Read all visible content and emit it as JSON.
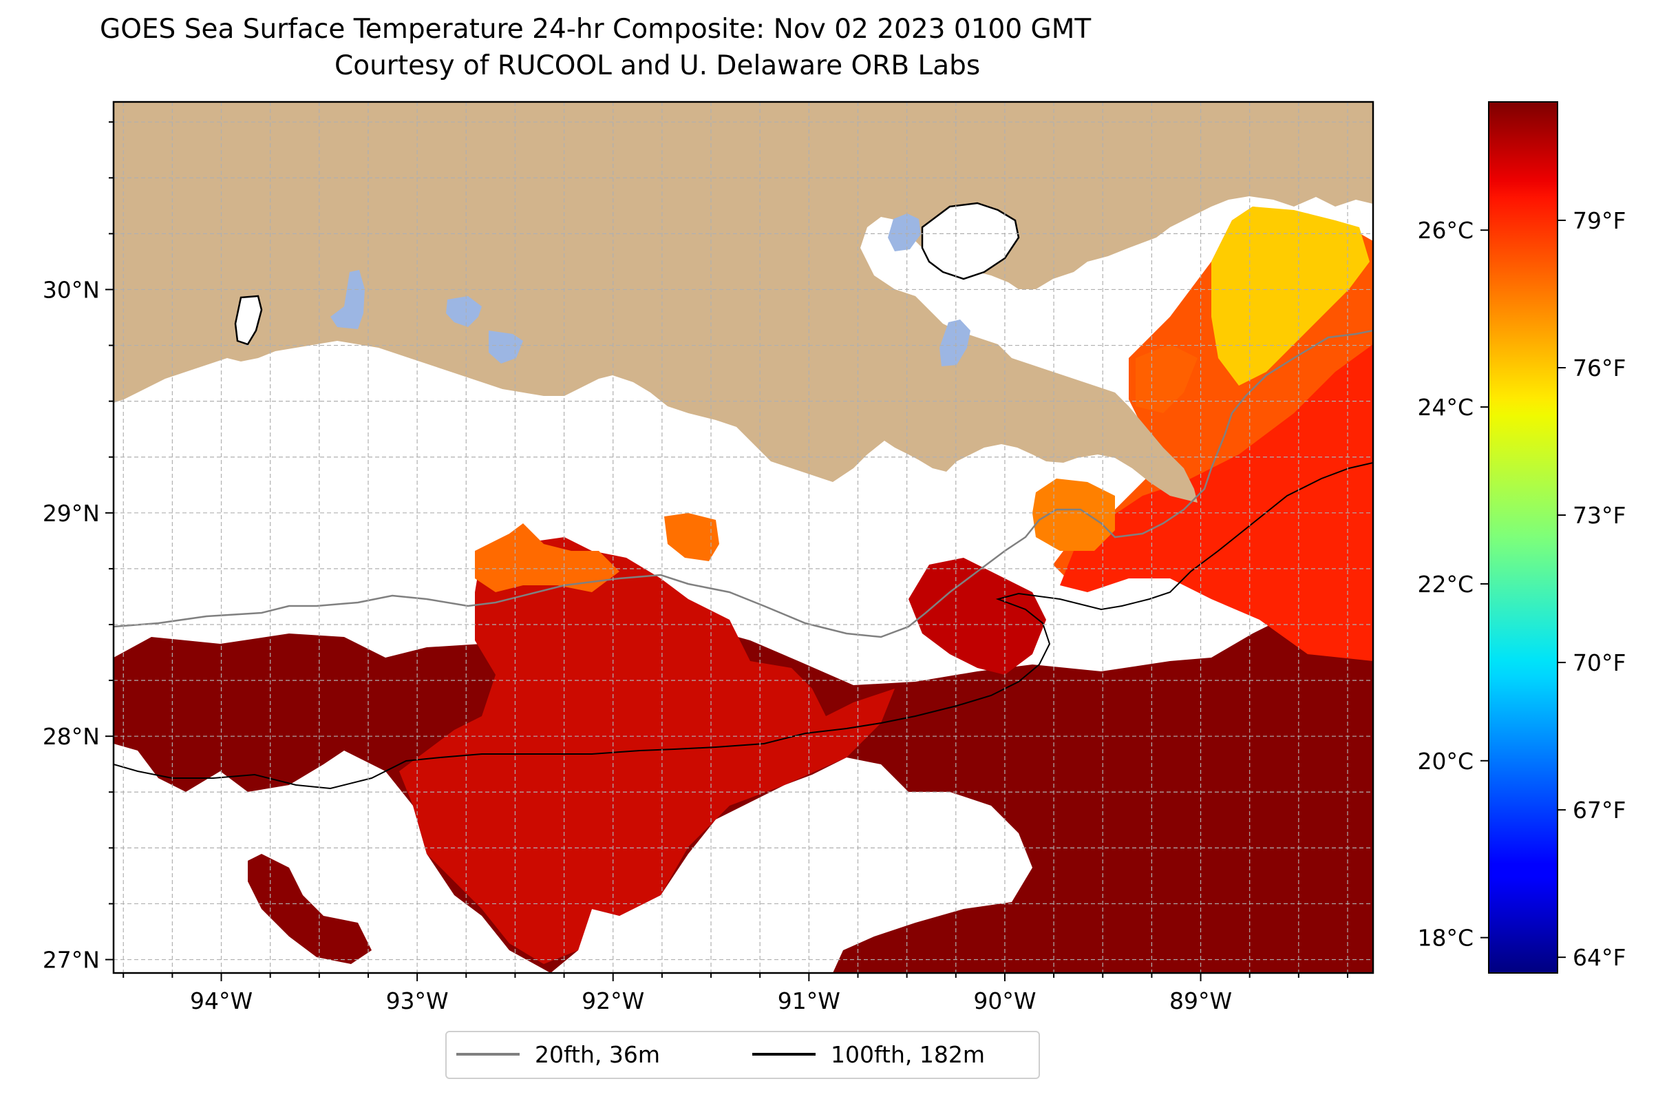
{
  "title": {
    "line1": "GOES Sea Surface Temperature 24-hr Composite: Nov 02 2023 0100 GMT",
    "line2": "Courtesy of RUCOOL and U. Delaware ORB Labs"
  },
  "map": {
    "extent": {
      "lon_min": -94.55,
      "lon_max": -88.12,
      "lat_min": 26.94,
      "lat_max": 30.84
    },
    "colors": {
      "land": "#d2b48c",
      "lakes": "#9cb6e3",
      "no_data": "#ffffff",
      "coastline": "#000000",
      "grid": "#b0b0b0"
    },
    "lon_ticks": [
      {
        "value": -94,
        "label": "94°W"
      },
      {
        "value": -93,
        "label": "93°W"
      },
      {
        "value": -92,
        "label": "92°W"
      },
      {
        "value": -91,
        "label": "91°W"
      },
      {
        "value": -90,
        "label": "90°W"
      },
      {
        "value": -89,
        "label": "89°W"
      }
    ],
    "lat_ticks": [
      {
        "value": 27,
        "label": "27°N"
      },
      {
        "value": 28,
        "label": "28°N"
      },
      {
        "value": 29,
        "label": "29°N"
      },
      {
        "value": 30,
        "label": "30°N"
      }
    ],
    "grid": true
  },
  "colorbar": {
    "colormap": "jet",
    "range_c": [
      17.6,
      27.45
    ],
    "celsius_ticks": [
      {
        "value": 18,
        "label": "18°C"
      },
      {
        "value": 20,
        "label": "20°C"
      },
      {
        "value": 22,
        "label": "22°C"
      },
      {
        "value": 24,
        "label": "24°C"
      },
      {
        "value": 26,
        "label": "26°C"
      }
    ],
    "fahrenheit_ticks": [
      {
        "value": 64,
        "label": "64°F"
      },
      {
        "value": 67,
        "label": "67°F"
      },
      {
        "value": 70,
        "label": "70°F"
      },
      {
        "value": 73,
        "label": "73°F"
      },
      {
        "value": 76,
        "label": "76°F"
      },
      {
        "value": 79,
        "label": "79°F"
      }
    ]
  },
  "legend": {
    "items": [
      {
        "label": "20fth, 36m",
        "color": "#808080"
      },
      {
        "label": "100fth, 182m",
        "color": "#000000"
      }
    ]
  }
}
